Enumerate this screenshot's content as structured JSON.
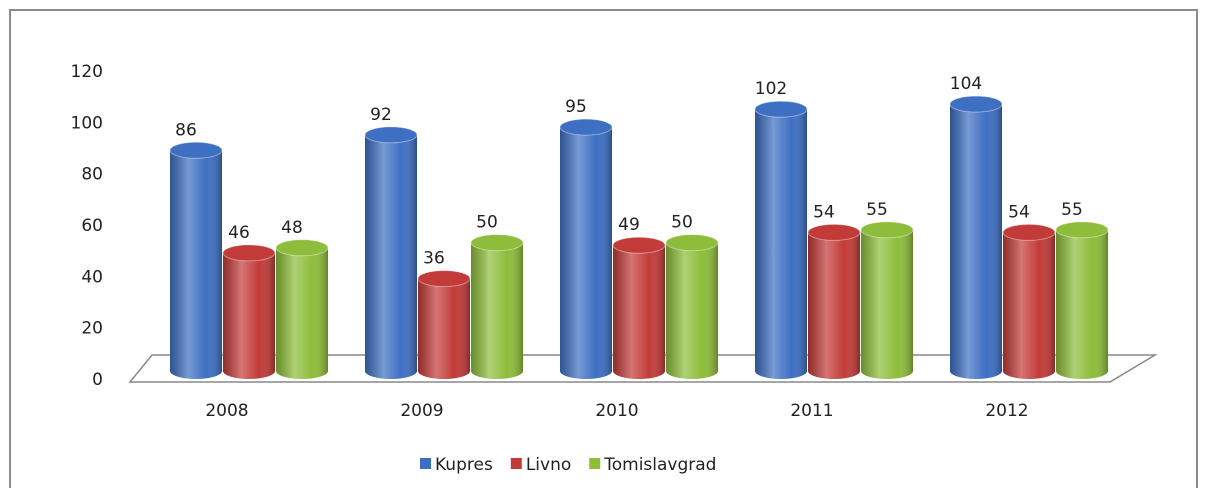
{
  "chart_data": {
    "type": "bar3d",
    "categories": [
      "2008",
      "2009",
      "2010",
      "2011",
      "2012"
    ],
    "series": [
      {
        "name": "Kupres",
        "color": "#3d6fc2",
        "values": [
          86,
          92,
          95,
          102,
          104
        ]
      },
      {
        "name": "Livno",
        "color": "#c23b38",
        "values": [
          46,
          36,
          49,
          54,
          54
        ]
      },
      {
        "name": "Tomislavgrad",
        "color": "#8dbd3a",
        "values": [
          48,
          50,
          50,
          55,
          55
        ]
      }
    ],
    "ylim": [
      0,
      120
    ],
    "yticks": [
      0,
      20,
      40,
      60,
      80,
      100,
      120
    ],
    "legend": "bottom"
  }
}
